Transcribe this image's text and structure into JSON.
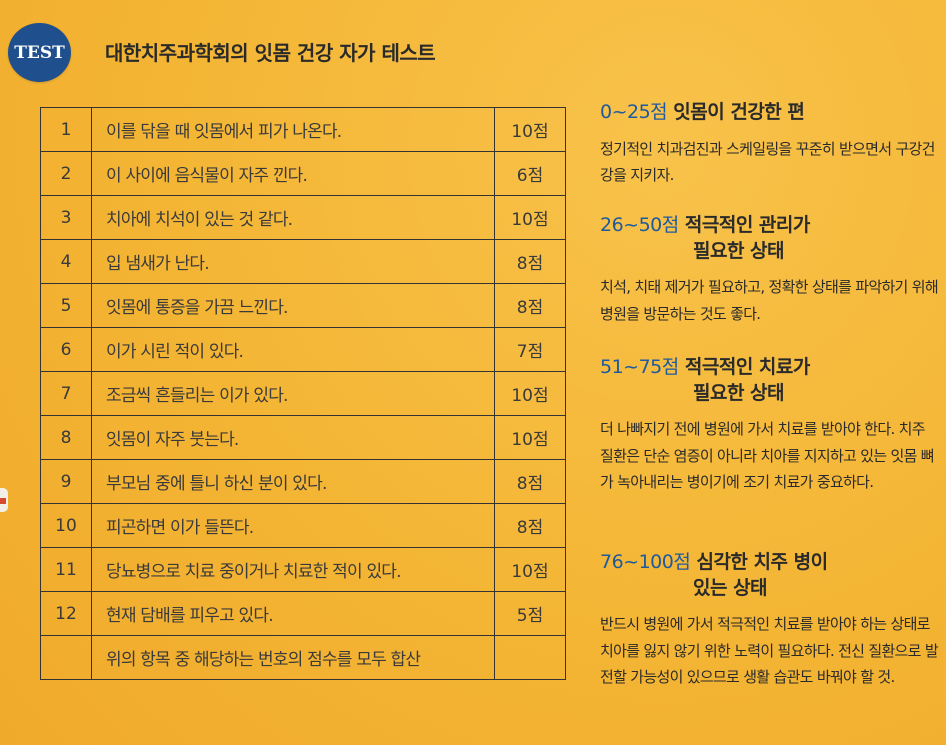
{
  "badge": {
    "text": "TEST"
  },
  "title": "대한치주과학회의 잇몸 건강 자가 테스트",
  "rows": [
    {
      "num": "1",
      "q": "이를 닦을 때 잇몸에서 피가 나온다.",
      "score": "10점"
    },
    {
      "num": "2",
      "q": "이 사이에 음식물이 자주 낀다.",
      "score": "6점"
    },
    {
      "num": "3",
      "q": "치아에 치석이 있는 것 같다.",
      "score": "10점"
    },
    {
      "num": "4",
      "q": "입 냄새가 난다.",
      "score": "8점"
    },
    {
      "num": "5",
      "q": "잇몸에 통증을 가끔 느낀다.",
      "score": "8점"
    },
    {
      "num": "6",
      "q": "이가 시린 적이 있다.",
      "score": "7점"
    },
    {
      "num": "7",
      "q": "조금씩 흔들리는 이가 있다.",
      "score": "10점"
    },
    {
      "num": "8",
      "q": "잇몸이 자주 붓는다.",
      "score": "10점"
    },
    {
      "num": "9",
      "q": "부모님 중에 틀니 하신 분이 있다.",
      "score": "8점"
    },
    {
      "num": "10",
      "q": "피곤하면 이가 들뜬다.",
      "score": "8점"
    },
    {
      "num": "11",
      "q": "당뇨병으로 치료 중이거나 치료한 적이 있다.",
      "score": "10점"
    },
    {
      "num": "12",
      "q": "현재 담배를 피우고 있다.",
      "score": "5점"
    },
    {
      "num": "",
      "q": "위의 항목 중 해당하는 번호의 점수를 모두 합산",
      "score": ""
    }
  ],
  "results": [
    {
      "range": "0~25점",
      "title": "잇몸이 건강한 편",
      "title2": "",
      "desc": "정기적인 치과검진과 스케일링을 꾸준히 받으면서 구강건강을 지키자."
    },
    {
      "range": "26~50점",
      "title": "적극적인 관리가",
      "title2": "필요한 상태",
      "desc": "치석, 치태 제거가 필요하고, 정확한 상태를 파악하기 위해 병원을 방문하는 것도 좋다."
    },
    {
      "range": "51~75점",
      "title": "적극적인 치료가",
      "title2": "필요한 상태",
      "desc": "더 나빠지기 전에 병원에 가서 치료를 받아야 한다. 치주 질환은 단순 염증이 아니라 치아를 지지하고 있는 잇몸 뼈가 녹아내리는 병이기에 조기 치료가 중요하다."
    },
    {
      "range": "76~100점",
      "title": "심각한 치주 병이",
      "title2": "있는 상태",
      "desc": "반드시 병원에 가서 적극적인 치료를 받아야 하는 상태로 치아를 잃지 않기 위한 노력이 필요하다. 전신 질환으로 발전할 가능성이 있으므로 생활 습관도 바꿔야 할 것."
    }
  ],
  "colors": {
    "background": "#f6b735",
    "accent": "#1f5a9e",
    "badge": "#1f4f8c"
  }
}
